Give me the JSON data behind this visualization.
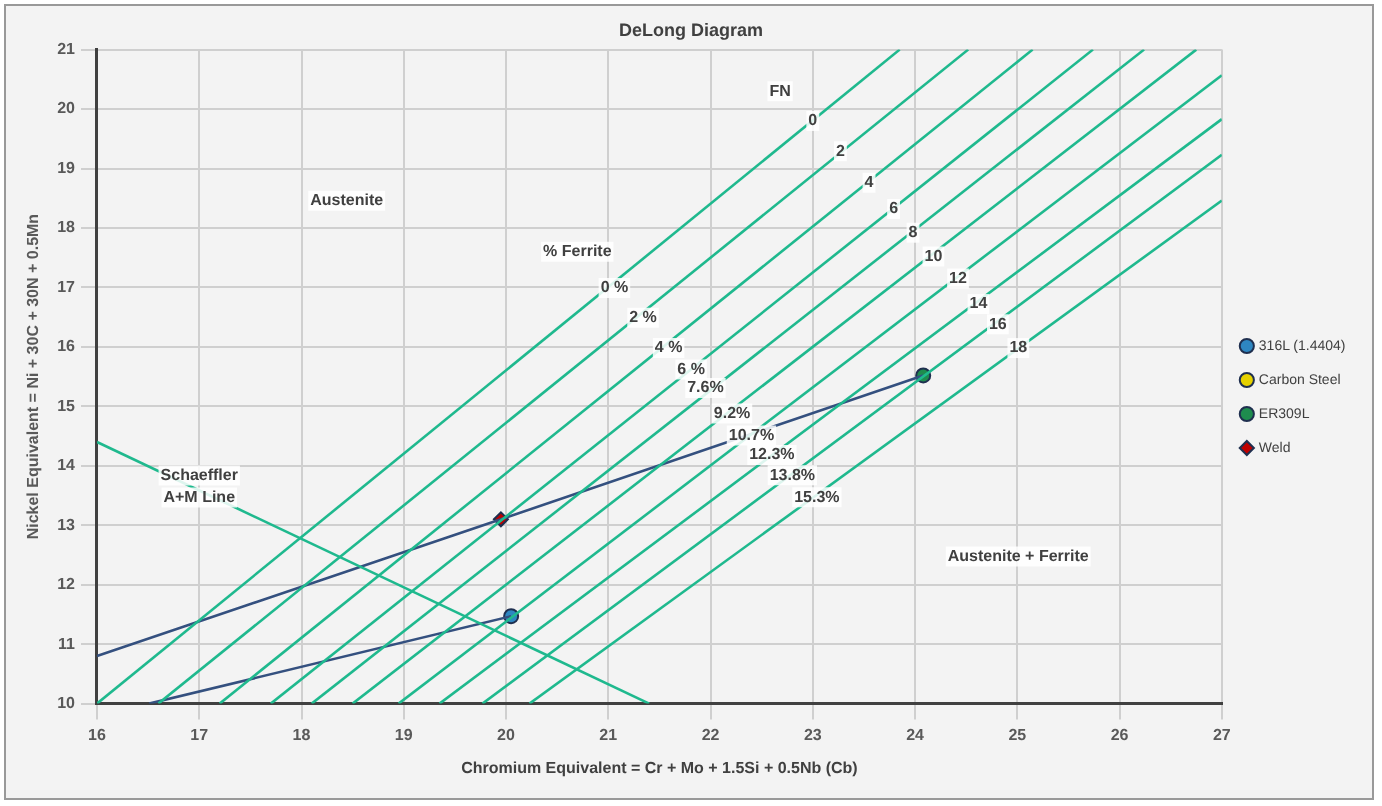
{
  "chart_data": {
    "type": "scatter",
    "title": "DeLong Diagram",
    "xlabel": "Chromium Equivalent = Cr + Mo + 1.5Si + 0.5Nb (Cb)",
    "ylabel": "Nickel Equivalent = Ni + 30C + 30N + 0.5Mn",
    "xlim": [
      16,
      27
    ],
    "ylim": [
      10,
      21
    ],
    "xticks": [
      16,
      17,
      18,
      19,
      20,
      21,
      22,
      23,
      24,
      25,
      26,
      27
    ],
    "yticks": [
      10,
      11,
      12,
      13,
      14,
      15,
      16,
      17,
      18,
      19,
      20,
      21
    ],
    "grid": true,
    "legend": "right",
    "series": [
      {
        "type": "line",
        "color": "#1fb98e",
        "marker": "none",
        "x": [
          16,
          23.85
        ],
        "values": [
          10,
          21
        ]
      },
      {
        "type": "line",
        "color": "#1fb98e",
        "marker": "none",
        "x": [
          16.6,
          24.52
        ],
        "values": [
          10,
          21
        ]
      },
      {
        "type": "line",
        "color": "#1fb98e",
        "marker": "none",
        "x": [
          17.2,
          25.15
        ],
        "values": [
          10,
          21
        ]
      },
      {
        "type": "line",
        "color": "#1fb98e",
        "marker": "none",
        "x": [
          17.7,
          25.74
        ],
        "values": [
          10,
          21
        ]
      },
      {
        "type": "line",
        "color": "#1fb98e",
        "marker": "none",
        "x": [
          18.1,
          26.24
        ],
        "values": [
          10,
          21
        ]
      },
      {
        "type": "line",
        "color": "#1fb98e",
        "marker": "none",
        "x": [
          18.5,
          26.75
        ],
        "values": [
          10,
          21
        ]
      },
      {
        "type": "line",
        "color": "#1fb98e",
        "marker": "none",
        "x": [
          18.95,
          27
        ],
        "values": [
          10,
          20.57
        ]
      },
      {
        "type": "line",
        "color": "#1fb98e",
        "marker": "none",
        "x": [
          19.35,
          27
        ],
        "values": [
          10,
          19.83
        ]
      },
      {
        "type": "line",
        "color": "#1fb98e",
        "marker": "none",
        "x": [
          19.77,
          27
        ],
        "values": [
          10,
          19.23
        ]
      },
      {
        "type": "line",
        "color": "#1fb98e",
        "marker": "none",
        "x": [
          20.23,
          27
        ],
        "values": [
          10,
          18.46
        ]
      },
      {
        "type": "line",
        "color": "#1fb98e",
        "marker": "none",
        "x": [
          16,
          21.4
        ],
        "values": [
          14.4,
          10
        ]
      },
      {
        "type": "line",
        "color": "#34507f",
        "marker": "none",
        "x": [
          16,
          19.95,
          24.08
        ],
        "values": [
          10.8,
          13.1,
          15.52
        ]
      },
      {
        "type": "line",
        "color": "#34507f",
        "marker": "none",
        "x": [
          16.51,
          20.05
        ],
        "values": [
          10,
          11.47
        ]
      },
      {
        "name": "316L (1.4404)",
        "color": "#2e86c1",
        "marker": "circle",
        "x": [
          20.05
        ],
        "values": [
          11.47
        ]
      },
      {
        "name": "Carbon Steel",
        "color": "#e6d200",
        "marker": "circle"
      },
      {
        "name": "ER309L",
        "color": "#1e8c4e",
        "marker": "circle",
        "x": [
          24.08
        ],
        "values": [
          15.52
        ]
      },
      {
        "name": "Weld",
        "color": "#c00000",
        "marker": "diamond",
        "x": [
          19.95
        ],
        "values": [
          13.1
        ]
      }
    ],
    "annotations": [
      "Austenite",
      "% Ferrite",
      {
        "text": "0 %",
        "x": 21.06,
        "y": 16.99
      },
      {
        "text": "2 %",
        "x": 21.34,
        "y": 16.49
      },
      {
        "text": "4 %",
        "x": 21.59,
        "y": 15.98
      },
      {
        "text": "6 %",
        "x": 21.81,
        "y": 15.62
      },
      {
        "text": "7.6%",
        "x": 21.95,
        "y": 15.31
      },
      {
        "text": "9.2%",
        "x": 22.21,
        "y": 14.88
      },
      {
        "text": "10.7%",
        "x": 22.4,
        "y": 14.51
      },
      {
        "text": "12.3%",
        "x": 22.6,
        "y": 14.18
      },
      {
        "text": "13.8%",
        "x": 22.8,
        "y": 13.84
      },
      {
        "text": "15.3%",
        "x": 23.04,
        "y": 13.47
      },
      {
        "text": "FN",
        "x": 22.68,
        "y": 20.3
      },
      {
        "text": "0",
        "x": 23.0,
        "y": 19.8
      },
      {
        "text": "2",
        "x": 23.27,
        "y": 19.29
      },
      {
        "text": "4",
        "x": 23.55,
        "y": 18.76
      },
      {
        "text": "6",
        "x": 23.79,
        "y": 18.32
      },
      {
        "text": "8",
        "x": 23.98,
        "y": 17.92
      },
      {
        "text": "10",
        "x": 24.18,
        "y": 17.52
      },
      {
        "text": "12",
        "x": 24.42,
        "y": 17.15
      },
      {
        "text": "14",
        "x": 24.62,
        "y": 16.72
      },
      {
        "text": "16",
        "x": 24.81,
        "y": 16.38
      },
      {
        "text": "18",
        "x": 25.01,
        "y": 15.98
      },
      "Austenite + Ferrite",
      {
        "text": "Schaeffler\nA+M Line",
        "x": 17.0,
        "y": 13.65
      }
    ]
  }
}
